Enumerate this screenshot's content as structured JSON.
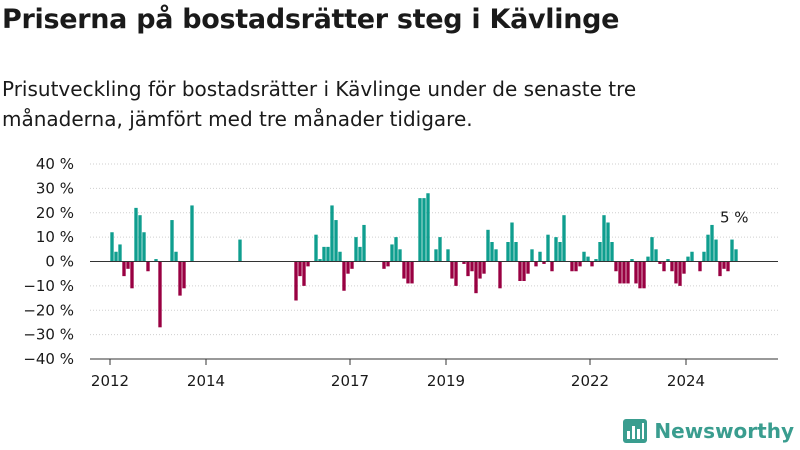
{
  "header": {
    "title": "Priserna på bostadsrätter steg i Kävlinge",
    "subtitle": "Prisutveckling för bostadsrätter i Kävlinge under de senaste tre månaderna, jämfört med tre månader tidigare."
  },
  "brand": {
    "name": "Newsworthy",
    "icon": "bar-chart-icon"
  },
  "colors": {
    "positive": "#0f9e8f",
    "negative": "#990042"
  },
  "chart_data": {
    "type": "bar",
    "title": "",
    "xlabel": "",
    "ylabel": "",
    "ylim": [
      -40,
      40
    ],
    "yticks": [
      40,
      30,
      20,
      10,
      0,
      -10,
      -20,
      -30,
      -40
    ],
    "ytick_labels": [
      "40 %",
      "30 %",
      "20 %",
      "10 %",
      "0 %",
      "−10 %",
      "−20 %",
      "−30 %",
      "−40 %"
    ],
    "xtick_labels": [
      "2012",
      "2014",
      "2017",
      "2019",
      "2022",
      "2024"
    ],
    "xtick_dates": [
      "2012-01",
      "2014-01",
      "2017-01",
      "2019-01",
      "2022-01",
      "2024-01"
    ],
    "xlim": [
      "2011-08",
      "2025-12"
    ],
    "grid": true,
    "last_label": "5 %",
    "series": [
      {
        "values": [
          {
            "date": "2012-01",
            "value": 12
          },
          {
            "date": "2012-02",
            "value": 4
          },
          {
            "date": "2012-03",
            "value": 7
          },
          {
            "date": "2012-04",
            "value": -6
          },
          {
            "date": "2012-05",
            "value": -3
          },
          {
            "date": "2012-06",
            "value": -11
          },
          {
            "date": "2012-07",
            "value": 22
          },
          {
            "date": "2012-08",
            "value": 19
          },
          {
            "date": "2012-09",
            "value": 12
          },
          {
            "date": "2012-10",
            "value": -4
          },
          {
            "date": "2012-12",
            "value": 1
          },
          {
            "date": "2013-01",
            "value": -27
          },
          {
            "date": "2013-04",
            "value": 17
          },
          {
            "date": "2013-05",
            "value": 4
          },
          {
            "date": "2013-06",
            "value": -14
          },
          {
            "date": "2013-07",
            "value": -11
          },
          {
            "date": "2013-09",
            "value": 23
          },
          {
            "date": "2014-09",
            "value": 9
          },
          {
            "date": "2015-11",
            "value": -16
          },
          {
            "date": "2015-12",
            "value": -6
          },
          {
            "date": "2016-01",
            "value": -10
          },
          {
            "date": "2016-02",
            "value": -2
          },
          {
            "date": "2016-04",
            "value": 11
          },
          {
            "date": "2016-05",
            "value": 1
          },
          {
            "date": "2016-06",
            "value": 6
          },
          {
            "date": "2016-07",
            "value": 6
          },
          {
            "date": "2016-08",
            "value": 23
          },
          {
            "date": "2016-09",
            "value": 17
          },
          {
            "date": "2016-10",
            "value": 4
          },
          {
            "date": "2016-11",
            "value": -12
          },
          {
            "date": "2016-12",
            "value": -5
          },
          {
            "date": "2017-01",
            "value": -3
          },
          {
            "date": "2017-02",
            "value": 10
          },
          {
            "date": "2017-03",
            "value": 6
          },
          {
            "date": "2017-04",
            "value": 15
          },
          {
            "date": "2017-09",
            "value": -3
          },
          {
            "date": "2017-10",
            "value": -2
          },
          {
            "date": "2017-11",
            "value": 7
          },
          {
            "date": "2017-12",
            "value": 10
          },
          {
            "date": "2018-01",
            "value": 5
          },
          {
            "date": "2018-02",
            "value": -7
          },
          {
            "date": "2018-03",
            "value": -9
          },
          {
            "date": "2018-04",
            "value": -9
          },
          {
            "date": "2018-06",
            "value": 26
          },
          {
            "date": "2018-07",
            "value": 26
          },
          {
            "date": "2018-08",
            "value": 28
          },
          {
            "date": "2018-10",
            "value": 5
          },
          {
            "date": "2018-11",
            "value": 10
          },
          {
            "date": "2019-01",
            "value": 5
          },
          {
            "date": "2019-02",
            "value": -7
          },
          {
            "date": "2019-03",
            "value": -10
          },
          {
            "date": "2019-05",
            "value": -1
          },
          {
            "date": "2019-06",
            "value": -6
          },
          {
            "date": "2019-07",
            "value": -4
          },
          {
            "date": "2019-08",
            "value": -13
          },
          {
            "date": "2019-09",
            "value": -7
          },
          {
            "date": "2019-10",
            "value": -5
          },
          {
            "date": "2019-11",
            "value": 13
          },
          {
            "date": "2019-12",
            "value": 8
          },
          {
            "date": "2020-01",
            "value": 5
          },
          {
            "date": "2020-02",
            "value": -11
          },
          {
            "date": "2020-04",
            "value": 8
          },
          {
            "date": "2020-05",
            "value": 16
          },
          {
            "date": "2020-06",
            "value": 8
          },
          {
            "date": "2020-07",
            "value": -8
          },
          {
            "date": "2020-08",
            "value": -8
          },
          {
            "date": "2020-09",
            "value": -5
          },
          {
            "date": "2020-10",
            "value": 5
          },
          {
            "date": "2020-11",
            "value": -2
          },
          {
            "date": "2020-12",
            "value": 4
          },
          {
            "date": "2021-01",
            "value": -1
          },
          {
            "date": "2021-02",
            "value": 11
          },
          {
            "date": "2021-03",
            "value": -4
          },
          {
            "date": "2021-04",
            "value": 10
          },
          {
            "date": "2021-05",
            "value": 8
          },
          {
            "date": "2021-06",
            "value": 19
          },
          {
            "date": "2021-08",
            "value": -4
          },
          {
            "date": "2021-09",
            "value": -4
          },
          {
            "date": "2021-10",
            "value": -2
          },
          {
            "date": "2021-11",
            "value": 4
          },
          {
            "date": "2021-12",
            "value": 2
          },
          {
            "date": "2022-01",
            "value": -2
          },
          {
            "date": "2022-02",
            "value": 1
          },
          {
            "date": "2022-03",
            "value": 8
          },
          {
            "date": "2022-04",
            "value": 19
          },
          {
            "date": "2022-05",
            "value": 16
          },
          {
            "date": "2022-06",
            "value": 8
          },
          {
            "date": "2022-07",
            "value": -4
          },
          {
            "date": "2022-08",
            "value": -9
          },
          {
            "date": "2022-09",
            "value": -9
          },
          {
            "date": "2022-10",
            "value": -9
          },
          {
            "date": "2022-11",
            "value": 1
          },
          {
            "date": "2022-12",
            "value": -9
          },
          {
            "date": "2023-01",
            "value": -11
          },
          {
            "date": "2023-02",
            "value": -11
          },
          {
            "date": "2023-03",
            "value": 2
          },
          {
            "date": "2023-04",
            "value": 10
          },
          {
            "date": "2023-05",
            "value": 5
          },
          {
            "date": "2023-06",
            "value": -1
          },
          {
            "date": "2023-07",
            "value": -4
          },
          {
            "date": "2023-08",
            "value": 1
          },
          {
            "date": "2023-09",
            "value": -4
          },
          {
            "date": "2023-10",
            "value": -9
          },
          {
            "date": "2023-11",
            "value": -10
          },
          {
            "date": "2023-12",
            "value": -5
          },
          {
            "date": "2024-01",
            "value": 2
          },
          {
            "date": "2024-02",
            "value": 4
          },
          {
            "date": "2024-04",
            "value": -4
          },
          {
            "date": "2024-05",
            "value": 4
          },
          {
            "date": "2024-06",
            "value": 11
          },
          {
            "date": "2024-07",
            "value": 15
          },
          {
            "date": "2024-08",
            "value": 9
          },
          {
            "date": "2024-09",
            "value": -6
          },
          {
            "date": "2024-10",
            "value": -3
          },
          {
            "date": "2024-11",
            "value": -4
          },
          {
            "date": "2024-12",
            "value": 9
          },
          {
            "date": "2025-01",
            "value": 5
          }
        ]
      }
    ]
  }
}
